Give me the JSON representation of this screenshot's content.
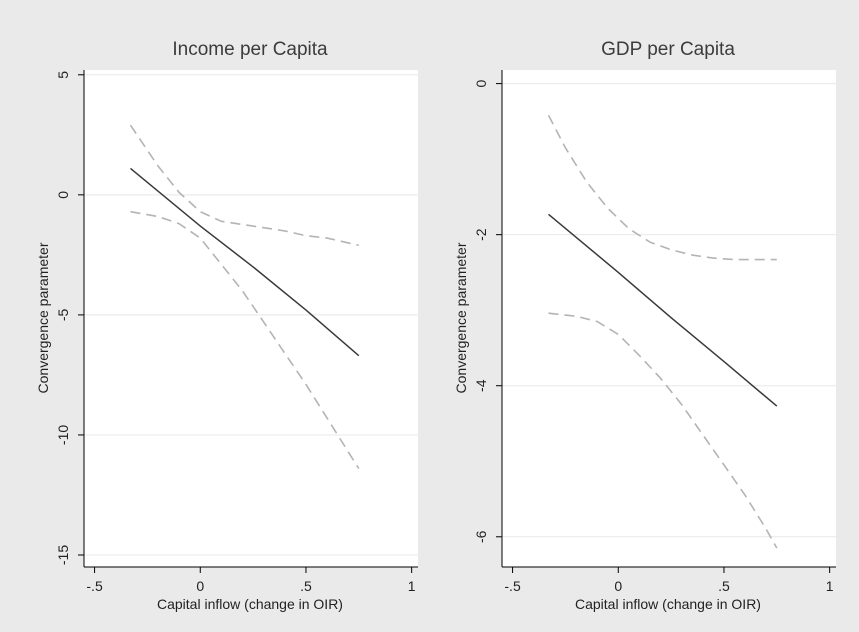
{
  "chart_data": [
    {
      "type": "line",
      "title": "Income per Capita",
      "xlabel": "Capital inflow (change in OIR)",
      "ylabel": "Convergence parameter",
      "xlim": [
        -0.55,
        1.03
      ],
      "ylim": [
        -15.5,
        5.2
      ],
      "xticks": [
        -0.5,
        0,
        0.5,
        1
      ],
      "xtick_labels": [
        "-.5",
        "0",
        ".5",
        "1"
      ],
      "yticks": [
        5,
        0,
        -5,
        -10,
        -15
      ],
      "ytick_labels": [
        "5",
        "0",
        "-5",
        "-10",
        "-15"
      ],
      "grid": true,
      "series": [
        {
          "role": "estimate",
          "x": [
            -0.33,
            0,
            0.25,
            0.5,
            0.75
          ],
          "y": [
            1.1,
            -1.3,
            -3.0,
            -4.8,
            -6.7
          ]
        },
        {
          "role": "upper",
          "x": [
            -0.33,
            -0.2,
            -0.1,
            0,
            0.1,
            0.25,
            0.4,
            0.5,
            0.6,
            0.75
          ],
          "y": [
            2.9,
            1.2,
            0.1,
            -0.7,
            -1.1,
            -1.3,
            -1.5,
            -1.7,
            -1.8,
            -2.1
          ]
        },
        {
          "role": "lower",
          "x": [
            -0.33,
            -0.2,
            -0.1,
            0,
            0.1,
            0.2,
            0.3,
            0.4,
            0.5,
            0.6,
            0.7,
            0.75
          ],
          "y": [
            -0.7,
            -0.9,
            -1.2,
            -1.8,
            -2.9,
            -4.0,
            -5.3,
            -6.6,
            -7.9,
            -9.3,
            -10.7,
            -11.4
          ]
        }
      ]
    },
    {
      "type": "line",
      "title": "GDP per Capita",
      "xlabel": "Capital inflow (change in OIR)",
      "ylabel": "Convergence parameter",
      "xlim": [
        -0.55,
        1.03
      ],
      "ylim": [
        -6.4,
        0.18
      ],
      "xticks": [
        -0.5,
        0,
        0.5,
        1
      ],
      "xtick_labels": [
        "-.5",
        "0",
        ".5",
        "1"
      ],
      "yticks": [
        0,
        -2,
        -4,
        -6
      ],
      "ytick_labels": [
        "0",
        "-2",
        "-4",
        "-6"
      ],
      "grid": true,
      "series": [
        {
          "role": "estimate",
          "x": [
            -0.33,
            0,
            0.25,
            0.5,
            0.75
          ],
          "y": [
            -1.73,
            -2.5,
            -3.1,
            -3.68,
            -4.27
          ]
        },
        {
          "role": "upper",
          "x": [
            -0.33,
            -0.25,
            -0.15,
            -0.05,
            0.05,
            0.15,
            0.25,
            0.35,
            0.45,
            0.55,
            0.65,
            0.75
          ],
          "y": [
            -0.42,
            -0.85,
            -1.3,
            -1.65,
            -1.92,
            -2.1,
            -2.2,
            -2.27,
            -2.31,
            -2.33,
            -2.33,
            -2.33
          ]
        },
        {
          "role": "lower",
          "x": [
            -0.33,
            -0.2,
            -0.1,
            0,
            0.1,
            0.2,
            0.3,
            0.4,
            0.5,
            0.6,
            0.7,
            0.75
          ],
          "y": [
            -3.04,
            -3.08,
            -3.15,
            -3.32,
            -3.6,
            -3.9,
            -4.25,
            -4.65,
            -5.05,
            -5.45,
            -5.9,
            -6.15
          ]
        }
      ]
    }
  ]
}
